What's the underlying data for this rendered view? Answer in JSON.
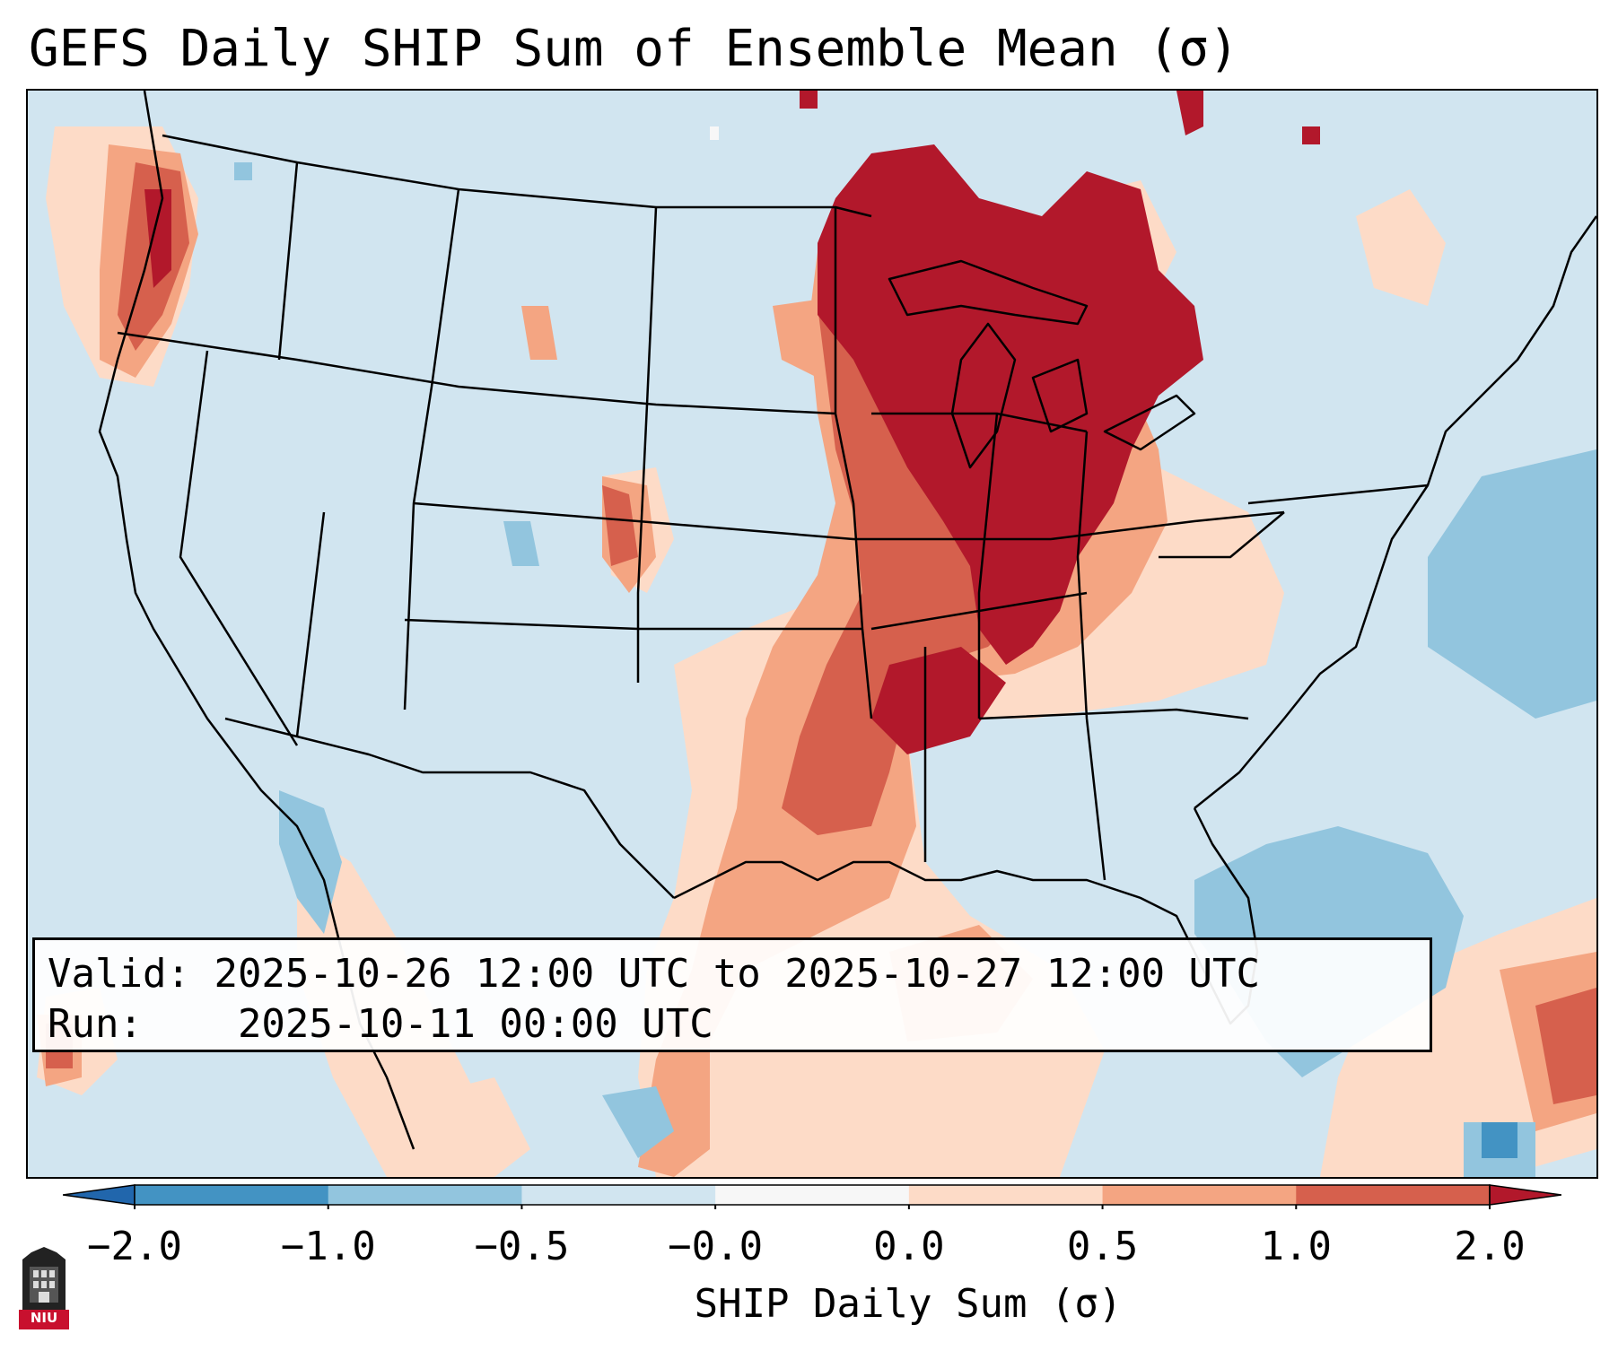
{
  "title": "GEFS Daily SHIP Sum of Ensemble Mean (σ)",
  "info": {
    "valid_label": "Valid:",
    "valid_text": "2025-10-26 12:00 UTC to 2025-10-27 12:00 UTC",
    "run_label": "Run:",
    "run_text": "2025-10-11 00:00 UTC"
  },
  "colorbar": {
    "label": "SHIP Daily Sum (σ)",
    "ticks": [
      "−2.0",
      "−1.0",
      "−0.5",
      "−0.0",
      "0.0",
      "0.5",
      "1.0",
      "2.0"
    ],
    "bins": [
      {
        "range": "< -2.0",
        "color": "#2166ac"
      },
      {
        "range": "-2.0 to -1.0",
        "color": "#4393c3"
      },
      {
        "range": "-1.0 to -0.5",
        "color": "#92c5de"
      },
      {
        "range": "-0.5 to -0.0",
        "color": "#d1e5f0"
      },
      {
        "range": "-0.0 to 0.0",
        "color": "#f7f7f7"
      },
      {
        "range": "0.0 to 0.5",
        "color": "#fddbc7"
      },
      {
        "range": "0.5 to 1.0",
        "color": "#f4a582"
      },
      {
        "range": "1.0 to 2.0",
        "color": "#d6604d"
      },
      {
        "range": "> 2.0",
        "color": "#b2182b"
      }
    ]
  },
  "logo": {
    "text": "NIU",
    "color": "#c8102e"
  }
}
